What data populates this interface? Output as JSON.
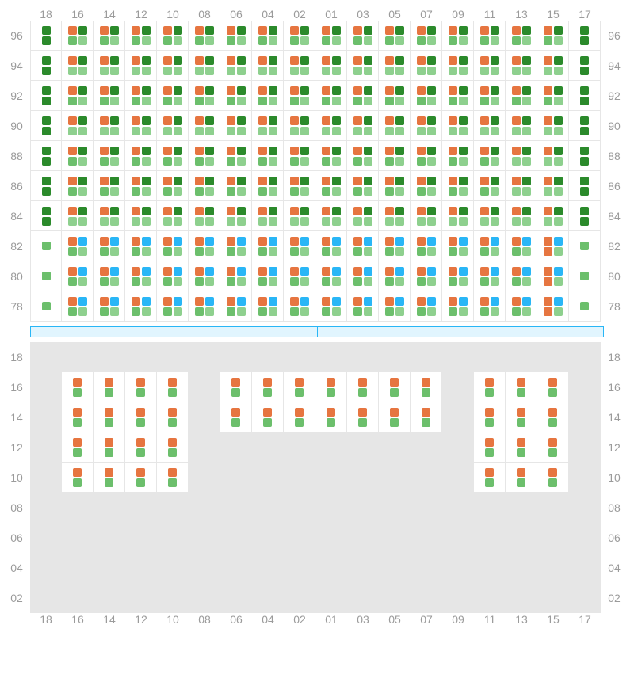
{
  "colors": {
    "orange": "#e67540",
    "dark_green": "#2b8a2b",
    "green": "#6cbf6c",
    "light_green": "#8ed08e",
    "blue": "#29b6f6",
    "grid": "#e6e6e6",
    "label": "#9b9b9b",
    "empty": "#e6e6e6"
  },
  "column_labels": [
    "18",
    "16",
    "14",
    "12",
    "10",
    "08",
    "06",
    "04",
    "02",
    "01",
    "03",
    "05",
    "07",
    "09",
    "11",
    "13",
    "15",
    "17"
  ],
  "upper": {
    "row_labels": [
      "96",
      "94",
      "92",
      "90",
      "88",
      "86",
      "84",
      "82",
      "80",
      "78"
    ],
    "rows": [
      {
        "label": "96",
        "cells": [
          "EG",
          "FF",
          "FF",
          "FF",
          "FF",
          "FF",
          "FF",
          "FF",
          "FF",
          "FF",
          "FF",
          "FF",
          "FF",
          "FF",
          "FF",
          "FF",
          "FF",
          "EG"
        ]
      },
      {
        "label": "94",
        "cells": [
          "EG",
          "FL",
          "FL",
          "FL",
          "FL",
          "FL",
          "FL",
          "FL",
          "FL",
          "FL",
          "FL",
          "FL",
          "FL",
          "FL",
          "FL",
          "FL",
          "FL",
          "EG"
        ]
      },
      {
        "label": "92",
        "cells": [
          "EG",
          "FF",
          "FF",
          "FF",
          "FF",
          "FF",
          "FF",
          "FF",
          "FF",
          "FF",
          "FF",
          "FF",
          "FF",
          "FF",
          "FF",
          "FF",
          "FF",
          "EG"
        ]
      },
      {
        "label": "90",
        "cells": [
          "EG",
          "FL",
          "FL",
          "FL",
          "FL",
          "FL",
          "FL",
          "FL",
          "FL",
          "FL",
          "FL",
          "FL",
          "FL",
          "FL",
          "FL",
          "FL",
          "FL",
          "EG"
        ]
      },
      {
        "label": "88",
        "cells": [
          "EG",
          "FF",
          "FF",
          "FF",
          "FF",
          "FF",
          "FF",
          "FF",
          "FF",
          "FF",
          "FF",
          "FF",
          "FF",
          "FF",
          "FF",
          "FL",
          "FL",
          "EG"
        ]
      },
      {
        "label": "86",
        "cells": [
          "EG",
          "FF",
          "FF",
          "FF",
          "FF",
          "FF",
          "FF",
          "FF",
          "FF",
          "FF",
          "FF",
          "FF",
          "FF",
          "FF",
          "FF",
          "FL",
          "FL",
          "EG"
        ]
      },
      {
        "label": "84",
        "cells": [
          "EG",
          "FL",
          "FL",
          "FL",
          "FL",
          "FL",
          "FL",
          "FL",
          "FL",
          "FL",
          "FL",
          "FL",
          "FL",
          "FL",
          "FL",
          "FL",
          "FL",
          "EG"
        ]
      },
      {
        "label": "82",
        "cells": [
          "SG",
          "BG",
          "BG",
          "BG",
          "BG",
          "BG",
          "BG",
          "BG",
          "BG",
          "BG",
          "BG",
          "BG",
          "BG",
          "BG",
          "BG",
          "BG",
          "BO",
          "SG"
        ]
      },
      {
        "label": "80",
        "cells": [
          "SG",
          "BG",
          "BG",
          "BG",
          "BG",
          "BG",
          "BG",
          "BG",
          "BG",
          "BG",
          "BG",
          "BG",
          "BG",
          "BG",
          "BG",
          "BG",
          "BO",
          "SG"
        ]
      },
      {
        "label": "78",
        "cells": [
          "SG",
          "BG",
          "BG",
          "BG",
          "BG",
          "BG",
          "BG",
          "BG",
          "BG",
          "BG",
          "BG",
          "BG",
          "BG",
          "BG",
          "BG",
          "BG",
          "BO",
          "SG"
        ]
      }
    ]
  },
  "divider": {
    "segments": 4
  },
  "lower": {
    "row_labels": [
      "18",
      "16",
      "14",
      "12",
      "10",
      "08",
      "06",
      "04",
      "02"
    ],
    "rows": [
      {
        "label": "18",
        "cells": [
          "X",
          "X",
          "X",
          "X",
          "X",
          "X",
          "X",
          "X",
          "X",
          "X",
          "X",
          "X",
          "X",
          "X",
          "X",
          "X",
          "X",
          "X"
        ]
      },
      {
        "label": "16",
        "cells": [
          "X",
          "OG",
          "OG",
          "OG",
          "OG",
          "X",
          "OG",
          "OG",
          "OG",
          "OG",
          "OG",
          "OG",
          "OG",
          "X",
          "OG",
          "OG",
          "OG",
          "X"
        ]
      },
      {
        "label": "14",
        "cells": [
          "X",
          "OG",
          "OG",
          "OG",
          "OG",
          "X",
          "OG",
          "OG",
          "OG",
          "OG",
          "OG",
          "OG",
          "OG",
          "X",
          "OG",
          "OG",
          "OG",
          "X"
        ]
      },
      {
        "label": "12",
        "cells": [
          "X",
          "OG",
          "OG",
          "OG",
          "OG",
          "X",
          "X",
          "X",
          "X",
          "X",
          "X",
          "X",
          "X",
          "X",
          "OG",
          "OG",
          "OG",
          "X"
        ]
      },
      {
        "label": "10",
        "cells": [
          "X",
          "OG",
          "OG",
          "OG",
          "OG",
          "X",
          "X",
          "X",
          "X",
          "X",
          "X",
          "X",
          "X",
          "X",
          "OG",
          "OG",
          "OG",
          "X"
        ]
      },
      {
        "label": "08",
        "cells": [
          "X",
          "X",
          "X",
          "X",
          "X",
          "X",
          "X",
          "X",
          "X",
          "X",
          "X",
          "X",
          "X",
          "X",
          "X",
          "X",
          "X",
          "X"
        ]
      },
      {
        "label": "06",
        "cells": [
          "X",
          "X",
          "X",
          "X",
          "X",
          "X",
          "X",
          "X",
          "X",
          "X",
          "X",
          "X",
          "X",
          "X",
          "X",
          "X",
          "X",
          "X"
        ]
      },
      {
        "label": "04",
        "cells": [
          "X",
          "X",
          "X",
          "X",
          "X",
          "X",
          "X",
          "X",
          "X",
          "X",
          "X",
          "X",
          "X",
          "X",
          "X",
          "X",
          "X",
          "X"
        ]
      },
      {
        "label": "02",
        "cells": [
          "X",
          "X",
          "X",
          "X",
          "X",
          "X",
          "X",
          "X",
          "X",
          "X",
          "X",
          "X",
          "X",
          "X",
          "X",
          "X",
          "X",
          "X"
        ]
      }
    ]
  },
  "patterns": {
    "EG": {
      "bg": "white",
      "layout": "v",
      "dots": [
        [
          "dark_green"
        ],
        [
          "dark_green"
        ]
      ]
    },
    "FF": {
      "bg": "white",
      "layout": "v2",
      "dots": [
        [
          "orange",
          "dark_green"
        ],
        [
          "green",
          "light_green"
        ]
      ]
    },
    "FL": {
      "bg": "white",
      "layout": "v2",
      "dots": [
        [
          "orange",
          "dark_green"
        ],
        [
          "light_green",
          "light_green"
        ]
      ]
    },
    "SG": {
      "bg": "white",
      "layout": "v",
      "dots": [
        [
          "green"
        ]
      ]
    },
    "BG": {
      "bg": "white",
      "layout": "v2",
      "dots": [
        [
          "orange",
          "blue"
        ],
        [
          "green",
          "light_green"
        ]
      ]
    },
    "BO": {
      "bg": "white",
      "layout": "v2",
      "dots": [
        [
          "orange",
          "blue"
        ],
        [
          "orange",
          "light_green"
        ]
      ]
    },
    "OG": {
      "bg": "white",
      "layout": "v",
      "dots": [
        [
          "orange"
        ],
        [
          "green"
        ]
      ]
    },
    "X": {
      "bg": "empty"
    }
  }
}
